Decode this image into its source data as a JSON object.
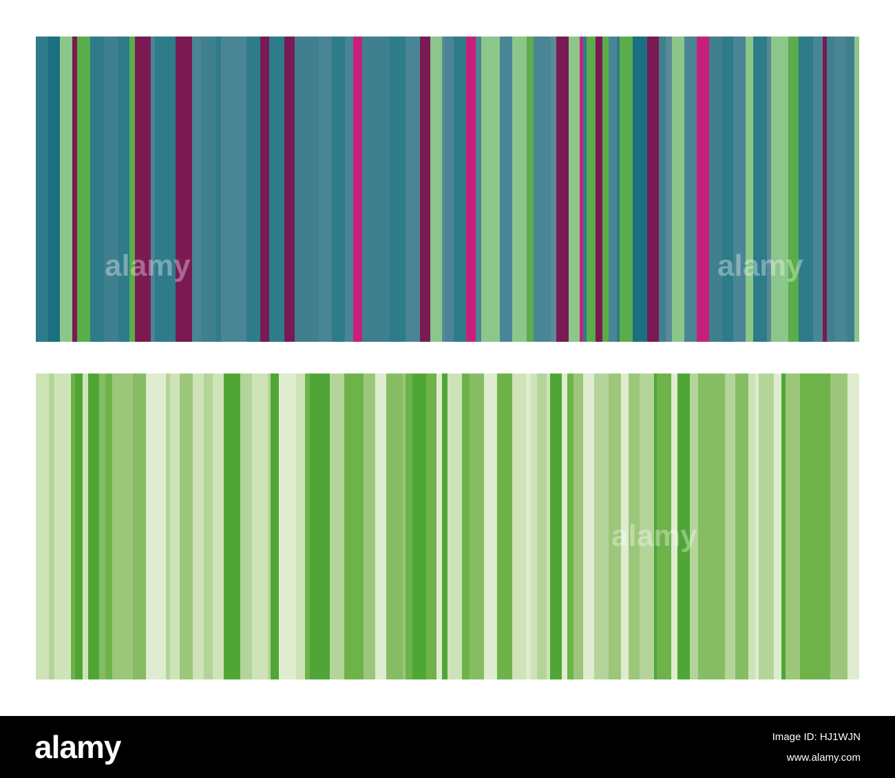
{
  "watermark": "alamy",
  "footer": {
    "logo": "alamy",
    "image_id": "Image ID: HJ1WJN",
    "url": "www.alamy.com"
  }
}
